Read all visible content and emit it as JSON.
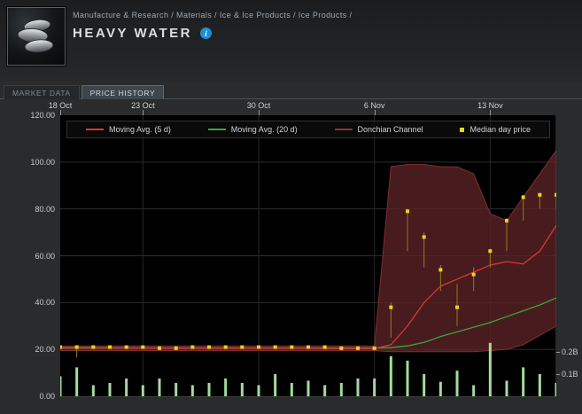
{
  "header": {
    "breadcrumb": "Manufacture & Research / Materials / Ice & Ice Products / Ice Products /",
    "title": "HEAVY WATER",
    "info_glyph": "i"
  },
  "tabs": [
    {
      "label": "MARKET DATA",
      "active": false
    },
    {
      "label": "PRICE HISTORY",
      "active": true
    }
  ],
  "chart_data": {
    "type": "line+bar",
    "item": "Heavy Water",
    "x_unit": "day",
    "days_span": 30,
    "x_ticks": [
      {
        "label": "18 Oct",
        "day": 0
      },
      {
        "label": "23 Oct",
        "day": 5
      },
      {
        "label": "30 Oct",
        "day": 12
      },
      {
        "label": "6 Nov",
        "day": 19
      },
      {
        "label": "13 Nov",
        "day": 26
      }
    ],
    "y_left": {
      "min": 0,
      "max": 120,
      "ticks": [
        {
          "v": 120,
          "label": "120.00"
        },
        {
          "v": 100,
          "label": "100.00"
        },
        {
          "v": 80,
          "label": "80.00"
        },
        {
          "v": 60,
          "label": "60.00"
        },
        {
          "v": 40,
          "label": "40.00"
        },
        {
          "v": 20,
          "label": "20.00"
        },
        {
          "v": 0,
          "label": "0.00"
        }
      ]
    },
    "y_right": {
      "ticks": [
        {
          "v_b": 0.2,
          "label": "0.2B"
        },
        {
          "v_b": 0.1,
          "label": "0.1B"
        }
      ]
    },
    "volume_to_price_scale": 95,
    "legend": [
      {
        "label": "Moving Avg. (5 d)",
        "color": "#d93636",
        "swatch": "line"
      },
      {
        "label": "Moving Avg. (20 d)",
        "color": "#3aa63a",
        "swatch": "line"
      },
      {
        "label": "Donchian Channel",
        "color": "#8b3434",
        "swatch": "line"
      },
      {
        "label": "Median day price",
        "color": "#e9d31c",
        "swatch": "square"
      }
    ],
    "colors": {
      "ma5": "#d93636",
      "ma20": "#3aa63a",
      "donchian_fill": "#5a2326",
      "donchian_stroke": "#7e2d2d",
      "median": "#e9d31c",
      "whisker": "#8f7d1f",
      "volume": "#a2dc9b",
      "grid": "#2e2e2e",
      "grid_v": "#262626",
      "plot_bg": "#000000"
    },
    "series": {
      "median_day_price": [
        21,
        21,
        21,
        21,
        21,
        21,
        20.5,
        20.5,
        21,
        21,
        21,
        21,
        21,
        21,
        21,
        21,
        21,
        20.5,
        20.5,
        20.5,
        38,
        79,
        68,
        54,
        38,
        52,
        62,
        75,
        85,
        86,
        86
      ],
      "day_low": [
        20.5,
        16.5,
        20.5,
        20.5,
        20.5,
        20.5,
        20,
        20,
        20.5,
        20.5,
        20.5,
        20.5,
        20.5,
        20.5,
        20.5,
        20.5,
        20.5,
        20,
        20,
        20,
        25,
        62,
        55,
        45,
        30,
        45,
        55,
        62,
        75,
        80,
        80
      ],
      "day_high": [
        21.5,
        21.5,
        21.5,
        21.5,
        21.5,
        21.5,
        21.5,
        21.5,
        21.5,
        21.5,
        21.5,
        21.5,
        21.5,
        21.5,
        21.5,
        21.5,
        21.5,
        21.5,
        21.5,
        21.5,
        40,
        80,
        70,
        56,
        48,
        55,
        63,
        76,
        86,
        87,
        87
      ],
      "moving_avg_5d": [
        20.8,
        20.8,
        20.8,
        20.7,
        20.7,
        20.6,
        20.6,
        20.5,
        20.5,
        20.5,
        20.5,
        20.5,
        20.5,
        20.5,
        20.5,
        20.5,
        20.4,
        20.4,
        20.4,
        20.4,
        22,
        30,
        40,
        47,
        50,
        53,
        56,
        57.5,
        56.5,
        62,
        73
      ],
      "moving_avg_20d": [
        20.6,
        20.6,
        20.6,
        20.6,
        20.6,
        20.6,
        20.6,
        20.6,
        20.6,
        20.6,
        20.6,
        20.6,
        20.6,
        20.6,
        20.6,
        20.6,
        20.6,
        20.6,
        20.6,
        20.6,
        20.8,
        21.5,
        23,
        25.5,
        27.5,
        29.5,
        31.5,
        34,
        36.5,
        39,
        42
      ],
      "donchian_upper": [
        21.5,
        21.5,
        21.5,
        21.5,
        21.5,
        21.5,
        21.5,
        21.5,
        21.5,
        21.5,
        21.5,
        21.5,
        21.5,
        21.5,
        21.5,
        21.5,
        21.5,
        21.5,
        21.5,
        21.5,
        98,
        99,
        99,
        98,
        98,
        95,
        78,
        75,
        85,
        95,
        105
      ],
      "donchian_lower": [
        19.5,
        19.5,
        19.5,
        19.5,
        19.5,
        19.5,
        19.5,
        19.5,
        19.5,
        19.5,
        19.5,
        19.5,
        19.5,
        19.5,
        19.5,
        19.5,
        19.5,
        19.5,
        19.5,
        19.5,
        19,
        19,
        19,
        19,
        19,
        19,
        19.5,
        20,
        22,
        26,
        30
      ],
      "volume_b": [
        0.09,
        0.13,
        0.05,
        0.06,
        0.08,
        0.05,
        0.08,
        0.06,
        0.05,
        0.06,
        0.08,
        0.06,
        0.05,
        0.1,
        0.06,
        0.07,
        0.05,
        0.06,
        0.08,
        0.08,
        0.18,
        0.16,
        0.1,
        0.065,
        0.115,
        0.05,
        0.24,
        0.07,
        0.13,
        0.1,
        0.06
      ]
    }
  }
}
